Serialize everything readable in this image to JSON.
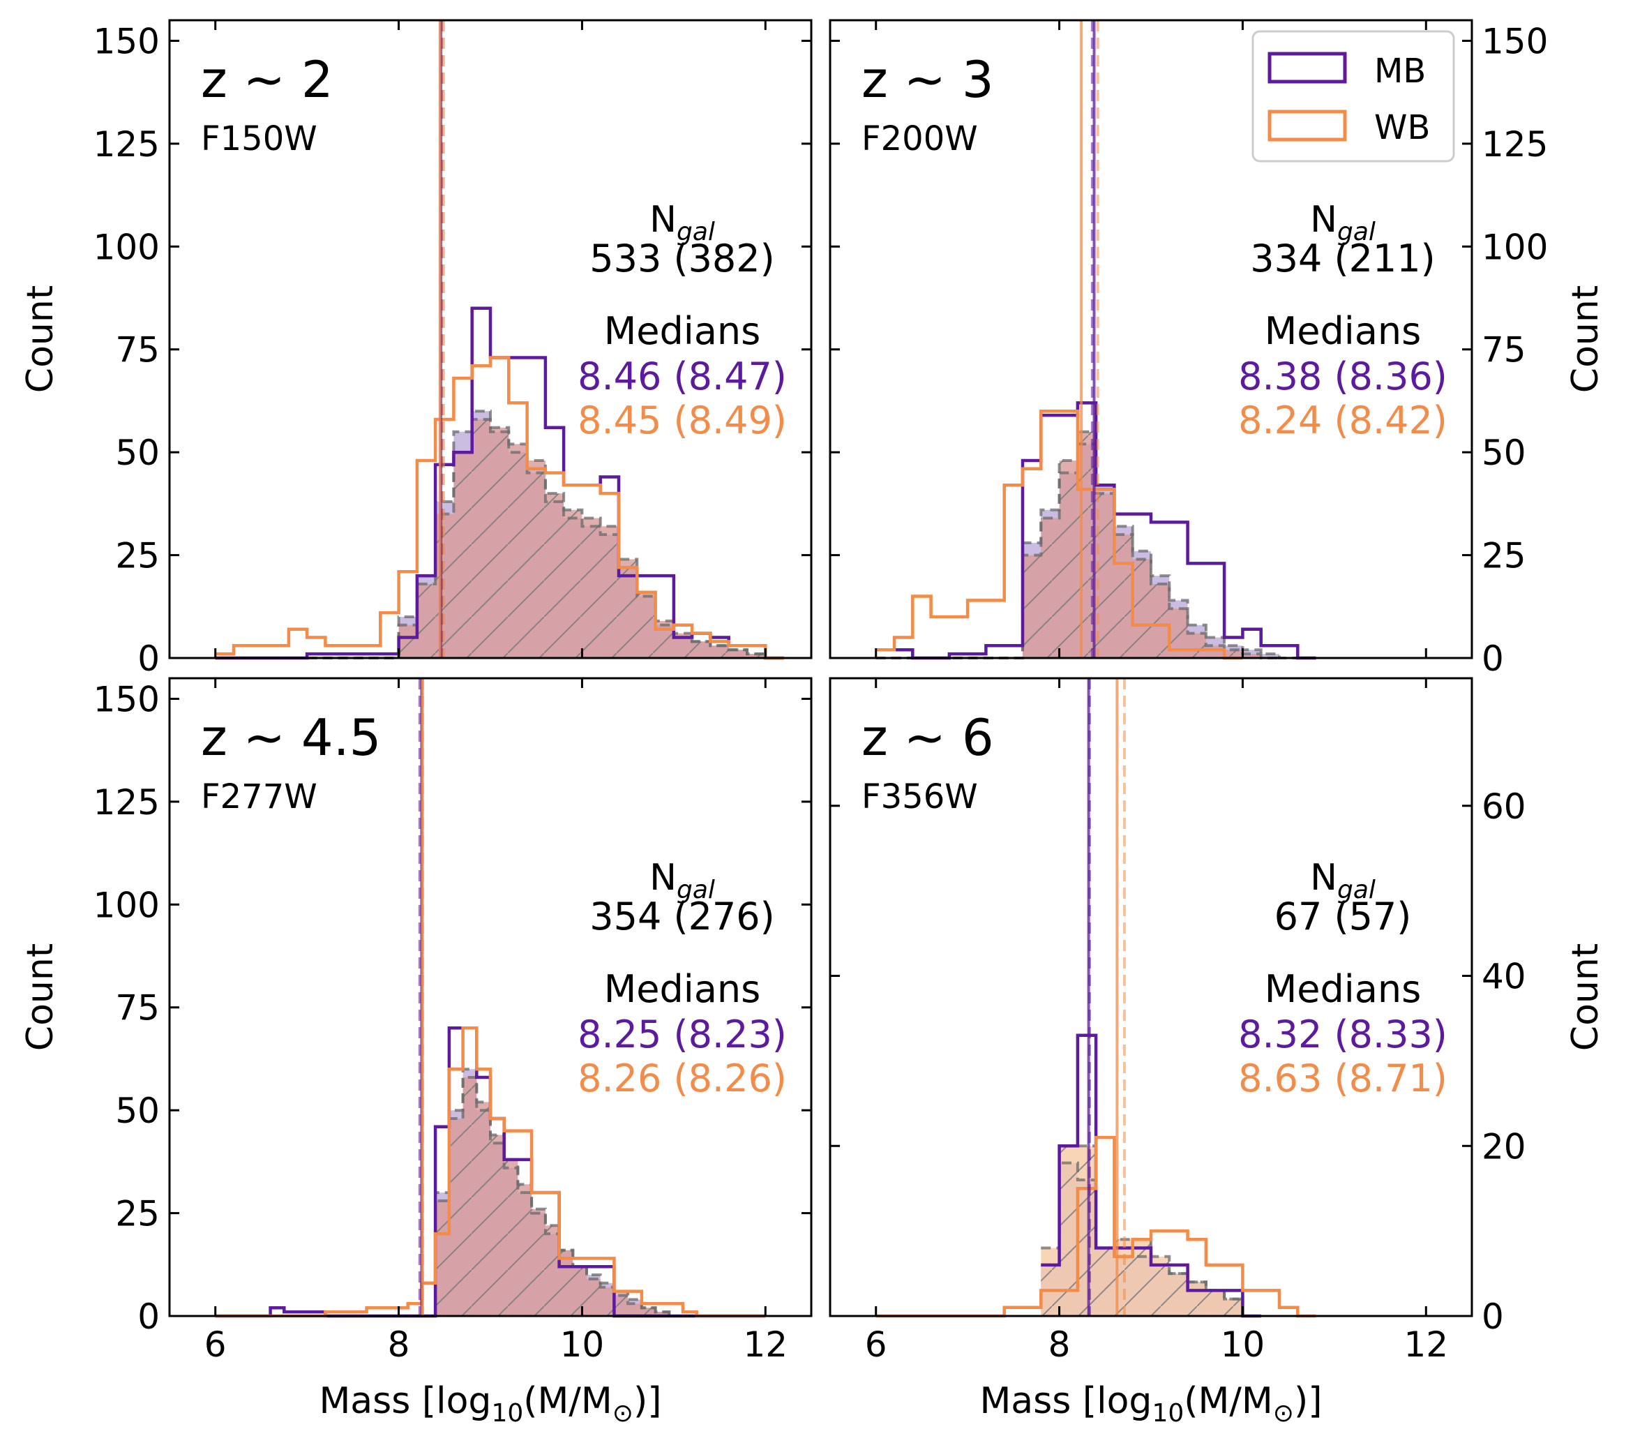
{
  "colors": {
    "mb": "#5c1a9e",
    "wb": "#f28c48",
    "fill_mb": "#b9a6d8",
    "fill_wb": "#d99a9a",
    "fill_wb_hi": "#f7cba6",
    "grey": "#6a6a6a"
  },
  "legend": {
    "mb_label": "MB",
    "wb_label": "WB"
  },
  "axes_text": {
    "xlabel_prefix": "Mass [log",
    "xlabel_sub": "10",
    "xlabel_mid": "(M/M",
    "xlabel_sun": "⊙",
    "xlabel_end": ")]",
    "ylabel": "Count",
    "ngal_label": "N",
    "ngal_sub": "gal",
    "medians_label": "Medians"
  },
  "chart_data": [
    {
      "type": "bar",
      "title": "z ~ 2",
      "filter": "F150W",
      "xlabel": "",
      "ylabel": "Count",
      "xlim": [
        5.5,
        12.5
      ],
      "ylim": [
        0,
        155
      ],
      "xticks": [
        6,
        8,
        10,
        12
      ],
      "yticks": [
        0,
        25,
        50,
        75,
        100,
        125,
        150
      ],
      "ytick_side": "left",
      "ngal_text": "533 (382)",
      "median_mb_text": "8.46 (8.47)",
      "median_wb_text": "8.45 (8.49)",
      "median_lines": [
        {
          "series": "MB",
          "x": 8.46,
          "style": "solid"
        },
        {
          "series": "MB",
          "x": 8.47,
          "style": "dashed"
        },
        {
          "series": "WB",
          "x": 8.45,
          "style": "solid"
        },
        {
          "series": "WB",
          "x": 8.49,
          "style": "dashed"
        }
      ],
      "series": [
        {
          "name": "MB",
          "x0": 6.0,
          "dx": 0.2,
          "values": [
            0,
            0,
            0,
            0,
            0,
            1,
            1,
            1,
            1,
            1,
            5,
            20,
            47,
            50,
            85,
            73,
            73,
            73,
            56,
            42,
            42,
            44,
            20,
            20,
            20,
            5,
            6,
            5,
            3,
            3,
            0
          ]
        },
        {
          "name": "WB",
          "x0": 6.0,
          "dx": 0.2,
          "values": [
            1,
            3,
            3,
            3,
            7,
            5,
            3,
            3,
            3,
            11,
            21,
            48,
            58,
            68,
            71,
            73,
            62,
            46,
            45,
            42,
            42,
            40,
            22,
            16,
            7,
            8,
            6,
            4,
            3,
            3,
            0
          ]
        },
        {
          "name": "MB sub",
          "x0": 6.0,
          "dx": 0.2,
          "values": [
            0,
            0,
            0,
            0,
            0,
            0,
            0,
            0,
            0,
            0,
            10,
            20,
            38,
            55,
            60,
            55,
            50,
            45,
            38,
            34,
            32,
            30,
            22,
            15,
            8,
            5,
            4,
            3,
            2,
            1,
            0
          ]
        },
        {
          "name": "WB sub",
          "x0": 6.0,
          "dx": 0.2,
          "values": [
            0,
            0,
            0,
            0,
            0,
            0,
            0,
            0,
            0,
            0,
            8,
            18,
            35,
            50,
            58,
            56,
            52,
            48,
            40,
            36,
            34,
            32,
            24,
            16,
            9,
            6,
            4,
            3,
            2,
            1,
            0
          ]
        }
      ]
    },
    {
      "type": "bar",
      "title": "z ~ 3",
      "filter": "F200W",
      "xlabel": "",
      "ylabel": "Count",
      "xlim": [
        5.5,
        12.5
      ],
      "ylim": [
        0,
        155
      ],
      "xticks": [
        6,
        8,
        10,
        12
      ],
      "yticks": [
        0,
        25,
        50,
        75,
        100,
        125,
        150
      ],
      "ytick_side": "right",
      "ngal_text": "334 (211)",
      "median_mb_text": "8.38 (8.36)",
      "median_wb_text": "8.24 (8.42)",
      "median_lines": [
        {
          "series": "MB",
          "x": 8.38,
          "style": "solid"
        },
        {
          "series": "MB",
          "x": 8.36,
          "style": "dashed"
        },
        {
          "series": "WB",
          "x": 8.24,
          "style": "solid"
        },
        {
          "series": "WB",
          "x": 8.42,
          "style": "dashed"
        }
      ],
      "series": [
        {
          "name": "MB",
          "x0": 6.0,
          "dx": 0.2,
          "values": [
            2,
            2,
            0,
            0,
            1,
            1,
            3,
            3,
            48,
            59,
            59,
            62,
            42,
            35,
            35,
            33,
            33,
            23,
            23,
            5,
            7,
            3,
            3,
            0
          ]
        },
        {
          "name": "WB",
          "x0": 6.0,
          "dx": 0.2,
          "values": [
            2,
            5,
            15,
            10,
            10,
            14,
            14,
            42,
            46,
            60,
            60,
            41,
            41,
            23,
            8,
            8,
            2,
            2,
            2,
            0
          ]
        },
        {
          "name": "MB sub",
          "x0": 6.0,
          "dx": 0.2,
          "values": [
            0,
            0,
            0,
            0,
            0,
            0,
            0,
            0,
            28,
            36,
            45,
            52,
            42,
            32,
            26,
            20,
            14,
            8,
            5,
            3,
            2,
            1,
            0
          ]
        },
        {
          "name": "WB sub",
          "x0": 6.0,
          "dx": 0.2,
          "values": [
            0,
            0,
            0,
            0,
            0,
            0,
            0,
            0,
            25,
            34,
            48,
            55,
            40,
            30,
            24,
            18,
            12,
            6,
            3,
            2,
            1,
            0
          ]
        }
      ]
    },
    {
      "type": "bar",
      "title": "z ~ 4.5",
      "filter": "F277W",
      "xlabel": "Mass [log10(M/M⊙)]",
      "ylabel": "Count",
      "xlim": [
        5.5,
        12.5
      ],
      "ylim": [
        0,
        155
      ],
      "xticks": [
        6,
        8,
        10,
        12
      ],
      "yticks": [
        0,
        25,
        50,
        75,
        100,
        125,
        150
      ],
      "ytick_side": "left",
      "ngal_text": "354 (276)",
      "median_mb_text": "8.25 (8.23)",
      "median_wb_text": "8.26 (8.26)",
      "median_lines": [
        {
          "series": "MB",
          "x": 8.25,
          "style": "solid"
        },
        {
          "series": "MB",
          "x": 8.23,
          "style": "dashed"
        },
        {
          "series": "WB",
          "x": 8.26,
          "style": "solid"
        },
        {
          "series": "WB",
          "x": 8.26,
          "style": "dashed"
        }
      ],
      "series": [
        {
          "name": "MB",
          "x0": 6.0,
          "dx": 0.15,
          "values": [
            0,
            0,
            0,
            0,
            2,
            1,
            1,
            1,
            0,
            0,
            0,
            0,
            0,
            0,
            0,
            0,
            46,
            70,
            70,
            58,
            48,
            38,
            38,
            30,
            30,
            12,
            12,
            12,
            12,
            0,
            0,
            0,
            0,
            0,
            0,
            0,
            0,
            0,
            0,
            0
          ]
        },
        {
          "name": "WB",
          "x0": 6.0,
          "dx": 0.15,
          "values": [
            0,
            0,
            0,
            0,
            0,
            0,
            0,
            0,
            1,
            1,
            1,
            2,
            2,
            2,
            3,
            8,
            20,
            60,
            70,
            60,
            48,
            45,
            45,
            30,
            30,
            14,
            14,
            14,
            14,
            6,
            6,
            3,
            3,
            3,
            1,
            0,
            0,
            0,
            0,
            0
          ]
        },
        {
          "name": "MB sub",
          "x0": 6.0,
          "dx": 0.15,
          "values": [
            0,
            0,
            0,
            0,
            0,
            0,
            0,
            0,
            0,
            0,
            0,
            0,
            0,
            0,
            0,
            0,
            30,
            50,
            60,
            50,
            42,
            36,
            30,
            25,
            20,
            16,
            12,
            10,
            8,
            6,
            4,
            2,
            1,
            0,
            0,
            0,
            0,
            0,
            0,
            0
          ]
        },
        {
          "name": "WB sub",
          "x0": 6.0,
          "dx": 0.15,
          "values": [
            0,
            0,
            0,
            0,
            0,
            0,
            0,
            0,
            0,
            0,
            0,
            0,
            0,
            0,
            0,
            0,
            28,
            48,
            58,
            52,
            44,
            38,
            32,
            26,
            22,
            16,
            12,
            9,
            7,
            5,
            3,
            2,
            1,
            0,
            0,
            0,
            0,
            0,
            0,
            0
          ]
        }
      ]
    },
    {
      "type": "bar",
      "title": "z ~ 6",
      "filter": "F356W",
      "xlabel": "Mass [log10(M/M⊙)]",
      "ylabel": "Count",
      "xlim": [
        5.5,
        12.5
      ],
      "ylim": [
        0,
        75
      ],
      "xticks": [
        6,
        8,
        10,
        12
      ],
      "yticks": [
        0,
        20,
        40,
        60
      ],
      "ytick_side": "right",
      "ngal_text": "67 (57)",
      "median_mb_text": "8.32 (8.33)",
      "median_wb_text": "8.63 (8.71)",
      "median_lines": [
        {
          "series": "MB",
          "x": 8.32,
          "style": "solid"
        },
        {
          "series": "MB",
          "x": 8.33,
          "style": "dashed"
        },
        {
          "series": "WB",
          "x": 8.63,
          "style": "solid"
        },
        {
          "series": "WB",
          "x": 8.71,
          "style": "dashed"
        }
      ],
      "series": [
        {
          "name": "MB",
          "x0": 7.8,
          "dx": 0.2,
          "values": [
            6,
            20,
            33,
            8,
            8,
            8,
            6,
            6,
            3,
            3,
            3,
            0
          ]
        },
        {
          "name": "WB",
          "x0": 6.0,
          "dx": 0.2,
          "values": [
            0,
            0,
            0,
            0,
            0,
            0,
            0,
            1,
            1,
            3,
            3,
            15,
            21,
            7,
            9,
            10,
            10,
            9,
            6,
            6,
            3,
            3,
            1,
            0
          ]
        },
        {
          "name": "MB sub",
          "x0": 7.8,
          "dx": 0.2,
          "values": [
            6,
            18,
            16,
            8,
            7,
            7,
            6,
            5,
            4,
            3,
            2,
            0
          ]
        },
        {
          "name": "WB sub",
          "x0": 7.8,
          "dx": 0.2,
          "values": [
            8,
            20,
            20,
            8,
            9,
            9,
            7,
            5,
            4,
            3,
            2,
            0
          ]
        }
      ]
    }
  ]
}
